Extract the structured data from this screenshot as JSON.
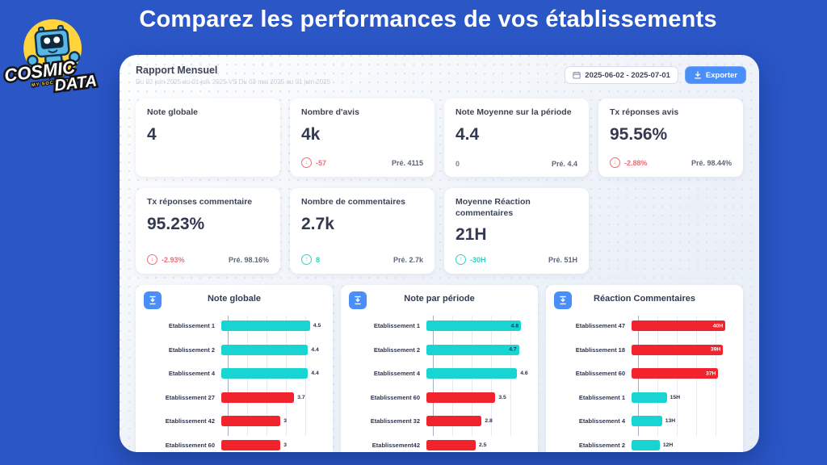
{
  "page": {
    "title": "Comparez les performances de vos établissements"
  },
  "logo": {
    "word1": "COSMIC",
    "word2": "DATA",
    "tagline": "MY SOCIAL ROOM"
  },
  "report": {
    "title": "Rapport Mensuel",
    "subtitle": "Du 02 juin 2025 au 01 juil. 2025 VS Du 03 mai 2025 au 01 juin 2025",
    "date_range": "2025-06-02 - 2025-07-01",
    "export_label": "Exporter"
  },
  "kpis": [
    {
      "title": "Note globale",
      "value": "4",
      "delta": null,
      "dir": null,
      "prev": null
    },
    {
      "title": "Nombre d'avis",
      "value": "4k",
      "delta": "-57",
      "dir": "down",
      "prev": "Pré. 4115"
    },
    {
      "title": "Note Moyenne sur la période",
      "value": "4.4",
      "delta": "0",
      "dir": "neutral",
      "prev": "Pré. 4.4"
    },
    {
      "title": "Tx réponses avis",
      "value": "95.56%",
      "delta": "-2.88%",
      "dir": "down",
      "prev": "Pré. 98.44%"
    },
    {
      "title": "Tx réponses commentaire",
      "value": "95.23%",
      "delta": "-2.93%",
      "dir": "down",
      "prev": "Pré. 98.16%"
    },
    {
      "title": "Nombre de commentaires",
      "value": "2.7k",
      "delta": "8",
      "dir": "up",
      "prev": "Pré. 2.7k"
    },
    {
      "title": "Moyenne Réaction commentaires",
      "value": "21H",
      "delta": "-30H",
      "dir": "up",
      "prev": "Pré. 51H"
    }
  ],
  "colors": {
    "bg_blue": "#2a56c6",
    "accent_blue": "#4a8ef7",
    "cyan": "#18d5d3",
    "red": "#f1232d",
    "delta_red": "#f56a75",
    "delta_teal": "#2cd3c3"
  },
  "chart_data": [
    {
      "type": "bar",
      "orientation": "horizontal",
      "title": "Note globale",
      "categories": [
        "Etablissement 1",
        "Etablissement 2",
        "Etablissement 4",
        "Etablissement 27",
        "Etablissement 42",
        "Etablissement 60"
      ],
      "values": [
        4.5,
        4.4,
        4.4,
        3.7,
        3,
        3
      ],
      "display_values": [
        "4.5",
        "4.4",
        "4.4",
        "3.7",
        "3",
        "3"
      ],
      "colors": [
        "cyan",
        "cyan",
        "cyan",
        "red",
        "red",
        "red"
      ],
      "label_inside": [
        false,
        false,
        false,
        false,
        false,
        false
      ],
      "xlim": [
        0,
        5
      ],
      "grid": true,
      "legend": false
    },
    {
      "type": "bar",
      "orientation": "horizontal",
      "title": "Note par période",
      "categories": [
        "Etablissement 1",
        "Etablissement 2",
        "Etablissement 4",
        "Etablissement 60",
        "Etablissement 32",
        "Etablissement42"
      ],
      "values": [
        4.8,
        4.7,
        4.6,
        3.5,
        2.8,
        2.5
      ],
      "display_values": [
        "4.8",
        "4.7",
        "4.6",
        "3.5",
        "2.8",
        "2.5"
      ],
      "colors": [
        "cyan",
        "cyan",
        "cyan",
        "red",
        "red",
        "red"
      ],
      "label_inside": [
        true,
        true,
        false,
        false,
        false,
        false
      ],
      "xlim": [
        0,
        5
      ],
      "grid": true,
      "legend": false
    },
    {
      "type": "bar",
      "orientation": "horizontal",
      "title": "Réaction Commentaires",
      "categories": [
        "Etablissement 47",
        "Etablissement 18",
        "Etablissement 60",
        "Etablissement 1",
        "Etablissement 4",
        "Etablissement 2"
      ],
      "values": [
        40,
        39,
        37,
        15,
        13,
        12
      ],
      "display_values": [
        "40H",
        "39H",
        "37H",
        "15H",
        "13H",
        "12H"
      ],
      "colors": [
        "red",
        "red",
        "red",
        "cyan",
        "cyan",
        "cyan"
      ],
      "label_inside": [
        true,
        true,
        true,
        false,
        false,
        false
      ],
      "xlim": [
        0,
        42
      ],
      "grid": true,
      "legend": false
    }
  ]
}
